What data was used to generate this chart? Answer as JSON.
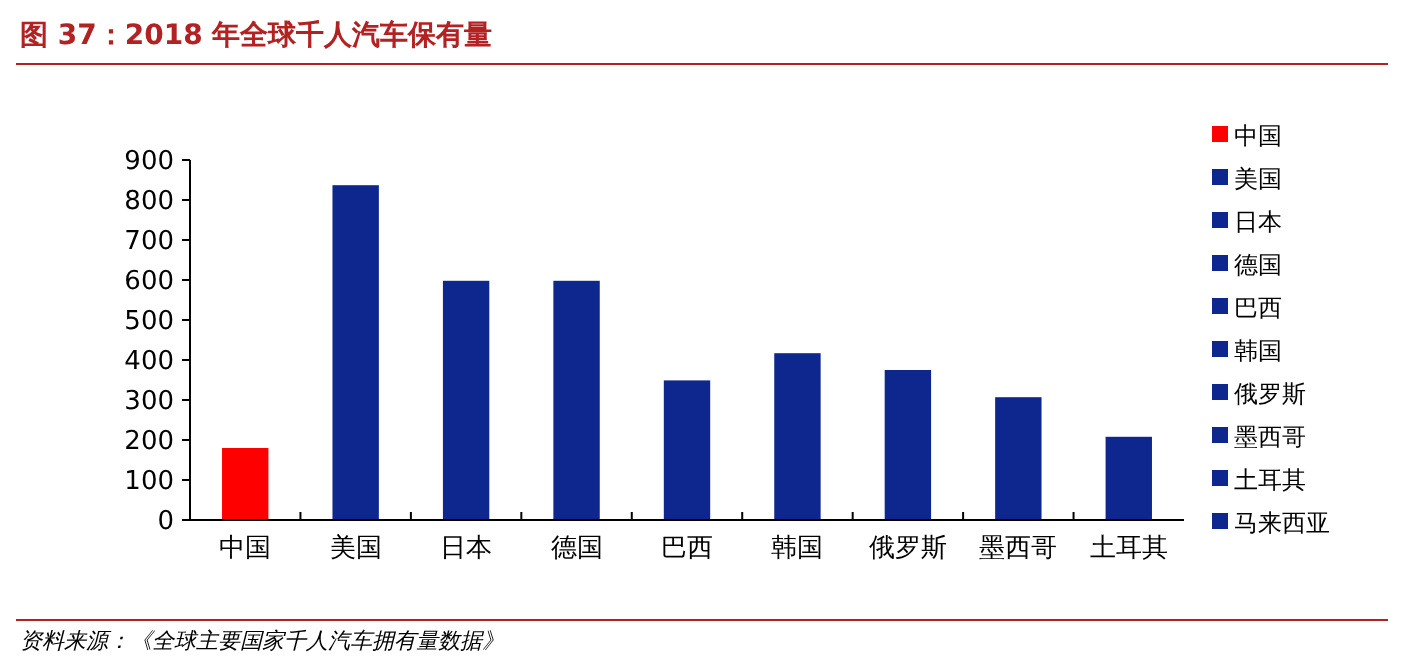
{
  "chart_data": {
    "type": "bar",
    "title": "图 37：2018 年全球千人汽车保有量",
    "categories": [
      "中国",
      "美国",
      "日本",
      "德国",
      "巴西",
      "韩国",
      "俄罗斯",
      "墨西哥",
      "土耳其"
    ],
    "ylim": [
      0,
      900
    ],
    "yticks": [
      0,
      100,
      200,
      300,
      400,
      500,
      600,
      700,
      800,
      900
    ],
    "grid": false,
    "legend": "right",
    "annotations": [
      "资料来源：《全球主要国家千人汽车拥有量数据》"
    ],
    "series": [
      {
        "name": "中国",
        "color": "#ff0000",
        "values": [
          180,
          null,
          null,
          null,
          null,
          null,
          null,
          null,
          null
        ]
      },
      {
        "name": "美国",
        "color": "#0d278f",
        "values": [
          null,
          837,
          null,
          null,
          null,
          null,
          null,
          null,
          null
        ]
      },
      {
        "name": "日本",
        "color": "#0d278f",
        "values": [
          null,
          null,
          598,
          null,
          null,
          null,
          null,
          null,
          null
        ]
      },
      {
        "name": "德国",
        "color": "#0d278f",
        "values": [
          null,
          null,
          null,
          598,
          null,
          null,
          null,
          null,
          null
        ]
      },
      {
        "name": "巴西",
        "color": "#0d278f",
        "values": [
          null,
          null,
          null,
          null,
          349,
          null,
          null,
          null,
          null
        ]
      },
      {
        "name": "韩国",
        "color": "#0d278f",
        "values": [
          null,
          null,
          null,
          null,
          null,
          417,
          null,
          null,
          null
        ]
      },
      {
        "name": "俄罗斯",
        "color": "#0d278f",
        "values": [
          null,
          null,
          null,
          null,
          null,
          null,
          375,
          null,
          null
        ]
      },
      {
        "name": "墨西哥",
        "color": "#0d278f",
        "values": [
          null,
          null,
          null,
          null,
          null,
          null,
          null,
          307,
          null
        ]
      },
      {
        "name": "土耳其",
        "color": "#0d278f",
        "values": [
          null,
          null,
          null,
          null,
          null,
          null,
          null,
          null,
          208
        ]
      },
      {
        "name": "马来西亚",
        "color": "#0d278f",
        "values": [
          null,
          null,
          null,
          null,
          null,
          null,
          null,
          null,
          null
        ]
      }
    ]
  }
}
